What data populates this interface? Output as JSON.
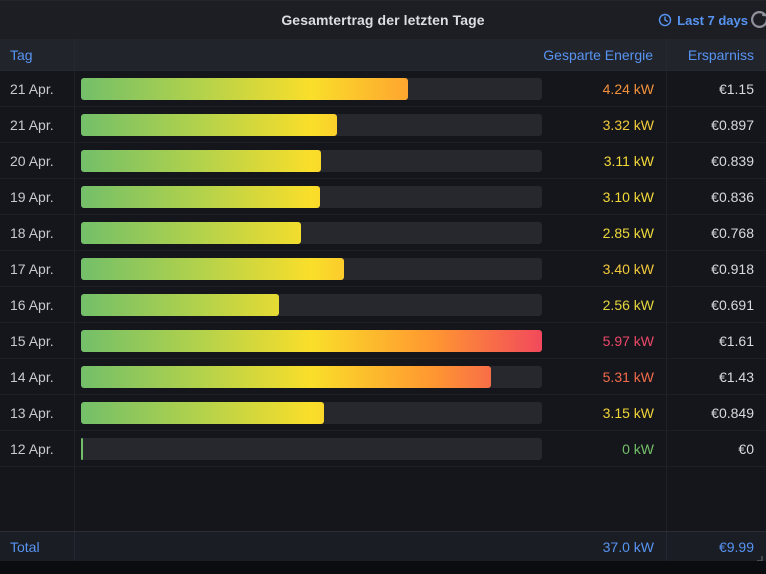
{
  "panel": {
    "title": "Gesamtertrag der letzten Tage",
    "time_range_label": "Last 7 days"
  },
  "table": {
    "columns": [
      "Tag",
      "Gesparte Energie",
      "Ersparniss"
    ],
    "rows": [
      {
        "day": "21 Apr.",
        "energy": "4.24 kW",
        "savings": "€1.15",
        "value": 4.24,
        "color": "#F2913D"
      },
      {
        "day": "21 Apr.",
        "energy": "3.32 kW",
        "savings": "€0.897",
        "value": 3.32,
        "color": "#F2CC3B"
      },
      {
        "day": "20 Apr.",
        "energy": "3.11 kW",
        "savings": "€0.839",
        "value": 3.11,
        "color": "#F2D838"
      },
      {
        "day": "19 Apr.",
        "energy": "3.10 kW",
        "savings": "€0.836",
        "value": 3.1,
        "color": "#F2D838"
      },
      {
        "day": "18 Apr.",
        "energy": "2.85 kW",
        "savings": "€0.768",
        "value": 2.85,
        "color": "#EEDA39"
      },
      {
        "day": "17 Apr.",
        "energy": "3.40 kW",
        "savings": "€0.918",
        "value": 3.4,
        "color": "#F2C93B"
      },
      {
        "day": "16 Apr.",
        "energy": "2.56 kW",
        "savings": "€0.691",
        "value": 2.56,
        "color": "#E4D83D"
      },
      {
        "day": "15 Apr.",
        "energy": "5.97 kW",
        "savings": "€1.61",
        "value": 5.97,
        "color": "#EC4868"
      },
      {
        "day": "14 Apr.",
        "energy": "5.31 kW",
        "savings": "€1.43",
        "value": 5.31,
        "color": "#F26B4A"
      },
      {
        "day": "13 Apr.",
        "energy": "3.15 kW",
        "savings": "€0.849",
        "value": 3.15,
        "color": "#F1D438"
      },
      {
        "day": "12 Apr.",
        "energy": "0 kW",
        "savings": "€0",
        "value": 0,
        "color": "#73BF69"
      }
    ],
    "footer": {
      "label": "Total",
      "energy": "37.0 kW",
      "savings": "€9.99"
    }
  },
  "chart_data": {
    "type": "bar",
    "orientation": "horizontal",
    "title": "Gesamtertrag der letzten Tage",
    "categories": [
      "21 Apr.",
      "21 Apr.",
      "20 Apr.",
      "19 Apr.",
      "18 Apr.",
      "17 Apr.",
      "16 Apr.",
      "15 Apr.",
      "14 Apr.",
      "13 Apr.",
      "12 Apr."
    ],
    "series": [
      {
        "name": "Gesparte Energie (kW)",
        "values": [
          4.24,
          3.32,
          3.11,
          3.1,
          2.85,
          3.4,
          2.56,
          5.97,
          5.31,
          3.15,
          0
        ]
      },
      {
        "name": "Ersparniss (EUR)",
        "values": [
          1.15,
          0.897,
          0.839,
          0.836,
          0.768,
          0.918,
          0.691,
          1.61,
          1.43,
          0.849,
          0
        ]
      }
    ],
    "xlim": [
      0,
      5.97
    ],
    "totals": {
      "energy_kw": 37.0,
      "savings_eur": 9.99
    },
    "color_scale": [
      "#73BF69",
      "#FADE2A",
      "#FF9830",
      "#F2495C"
    ],
    "legend_position": "none",
    "grid": false
  },
  "colors": {
    "accent_blue": "#5794F2",
    "bar_track": "#26282E",
    "panel_bg": "#15161C"
  }
}
